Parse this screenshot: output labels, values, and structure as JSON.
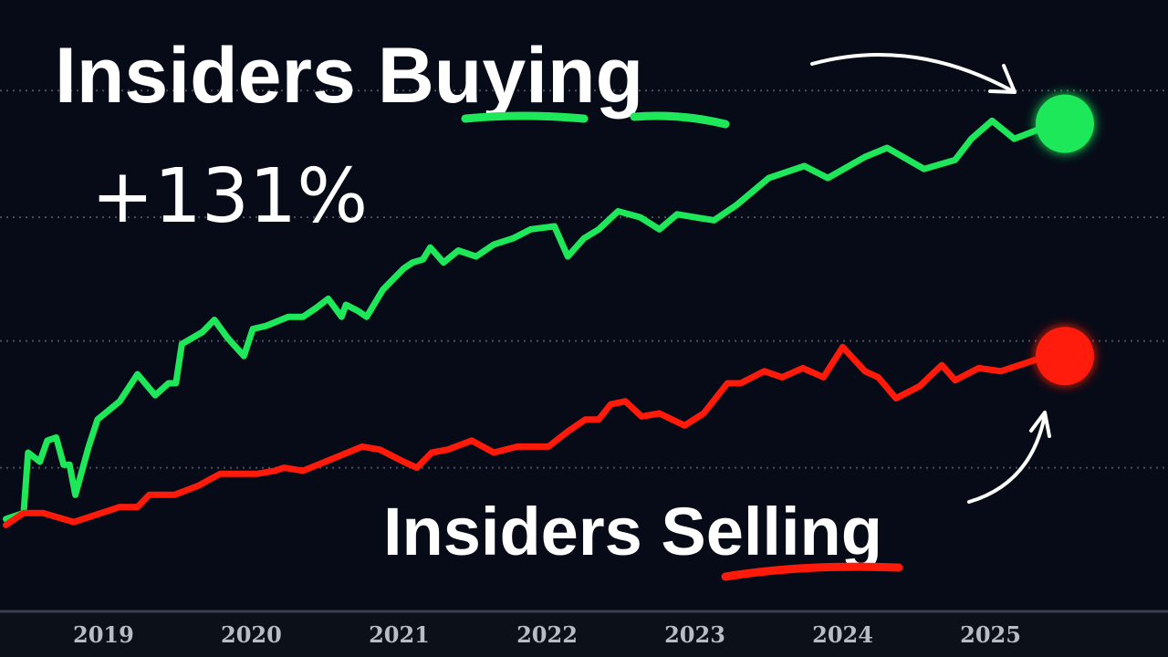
{
  "chart_data": {
    "type": "line",
    "annotations": [
      "Insiders Buying",
      "+131%",
      "Insiders Selling"
    ],
    "xlim": [
      2018.3,
      2026.2
    ],
    "xticks": [
      2019,
      2020,
      2021,
      2022,
      2023,
      2024,
      2025
    ],
    "ylim": [
      -30,
      172
    ],
    "grid_values": [
      17,
      59,
      100,
      142
    ],
    "grid": true,
    "series": [
      {
        "color": "#1ee85a",
        "x": [
          2018.34,
          2018.46,
          2018.49,
          2018.57,
          2018.62,
          2018.68,
          2018.73,
          2018.77,
          2018.81,
          2018.9,
          2018.96,
          2019.11,
          2019.23,
          2019.35,
          2019.44,
          2019.49,
          2019.53,
          2019.67,
          2019.75,
          2019.84,
          2019.95,
          2020.01,
          2020.1,
          2020.25,
          2020.35,
          2020.44,
          2020.52,
          2020.61,
          2020.64,
          2020.72,
          2020.78,
          2020.89,
          2021.03,
          2021.09,
          2021.16,
          2021.21,
          2021.3,
          2021.4,
          2021.52,
          2021.64,
          2021.77,
          2021.89,
          2022.05,
          2022.14,
          2022.25,
          2022.35,
          2022.48,
          2022.63,
          2022.76,
          2022.88,
          2023.0,
          2023.13,
          2023.28,
          2023.5,
          2023.74,
          2023.9,
          2024.15,
          2024.3,
          2024.55,
          2024.76,
          2024.87,
          2025.01,
          2025.16,
          2025.32,
          2025.49
        ],
        "values": [
          0,
          2,
          22,
          19,
          26,
          27,
          18,
          18,
          8,
          24,
          33,
          39,
          48,
          41,
          45,
          45,
          58,
          62,
          66,
          60,
          54,
          63,
          64,
          67,
          67,
          70,
          73,
          67,
          71,
          69,
          67,
          76,
          83,
          85,
          86,
          90,
          85,
          89,
          87,
          91,
          93,
          96,
          97,
          87,
          93,
          96,
          102,
          100,
          96,
          101,
          100,
          99,
          104,
          113,
          117,
          113,
          120,
          123,
          116,
          119,
          126,
          132,
          126,
          129,
          131
        ]
      },
      {
        "color": "#ff1a0a",
        "x": [
          2018.34,
          2018.46,
          2018.59,
          2018.8,
          2019.11,
          2019.23,
          2019.31,
          2019.48,
          2019.64,
          2019.79,
          2020.04,
          2020.16,
          2020.22,
          2020.35,
          2020.5,
          2020.75,
          2020.87,
          2021.03,
          2021.12,
          2021.22,
          2021.33,
          2021.49,
          2021.64,
          2021.8,
          2022.01,
          2022.14,
          2022.26,
          2022.35,
          2022.43,
          2022.53,
          2022.64,
          2022.76,
          2022.93,
          2023.06,
          2023.22,
          2023.31,
          2023.47,
          2023.59,
          2023.73,
          2023.87,
          2024.0,
          2024.15,
          2024.24,
          2024.36,
          2024.52,
          2024.67,
          2024.76,
          2024.92,
          2025.07,
          2025.32,
          2025.49
        ],
        "values": [
          -2,
          2,
          2,
          -1,
          4,
          4,
          8,
          8,
          11,
          15,
          15,
          16,
          17,
          16,
          19,
          24,
          23,
          19,
          17,
          22,
          23,
          26,
          22,
          24,
          24,
          29,
          33,
          33,
          38,
          39,
          34,
          35,
          31,
          35,
          45,
          45,
          49,
          47,
          50,
          47,
          57,
          49,
          47,
          40,
          44,
          51,
          46,
          50,
          49,
          53,
          54
        ]
      }
    ]
  }
}
